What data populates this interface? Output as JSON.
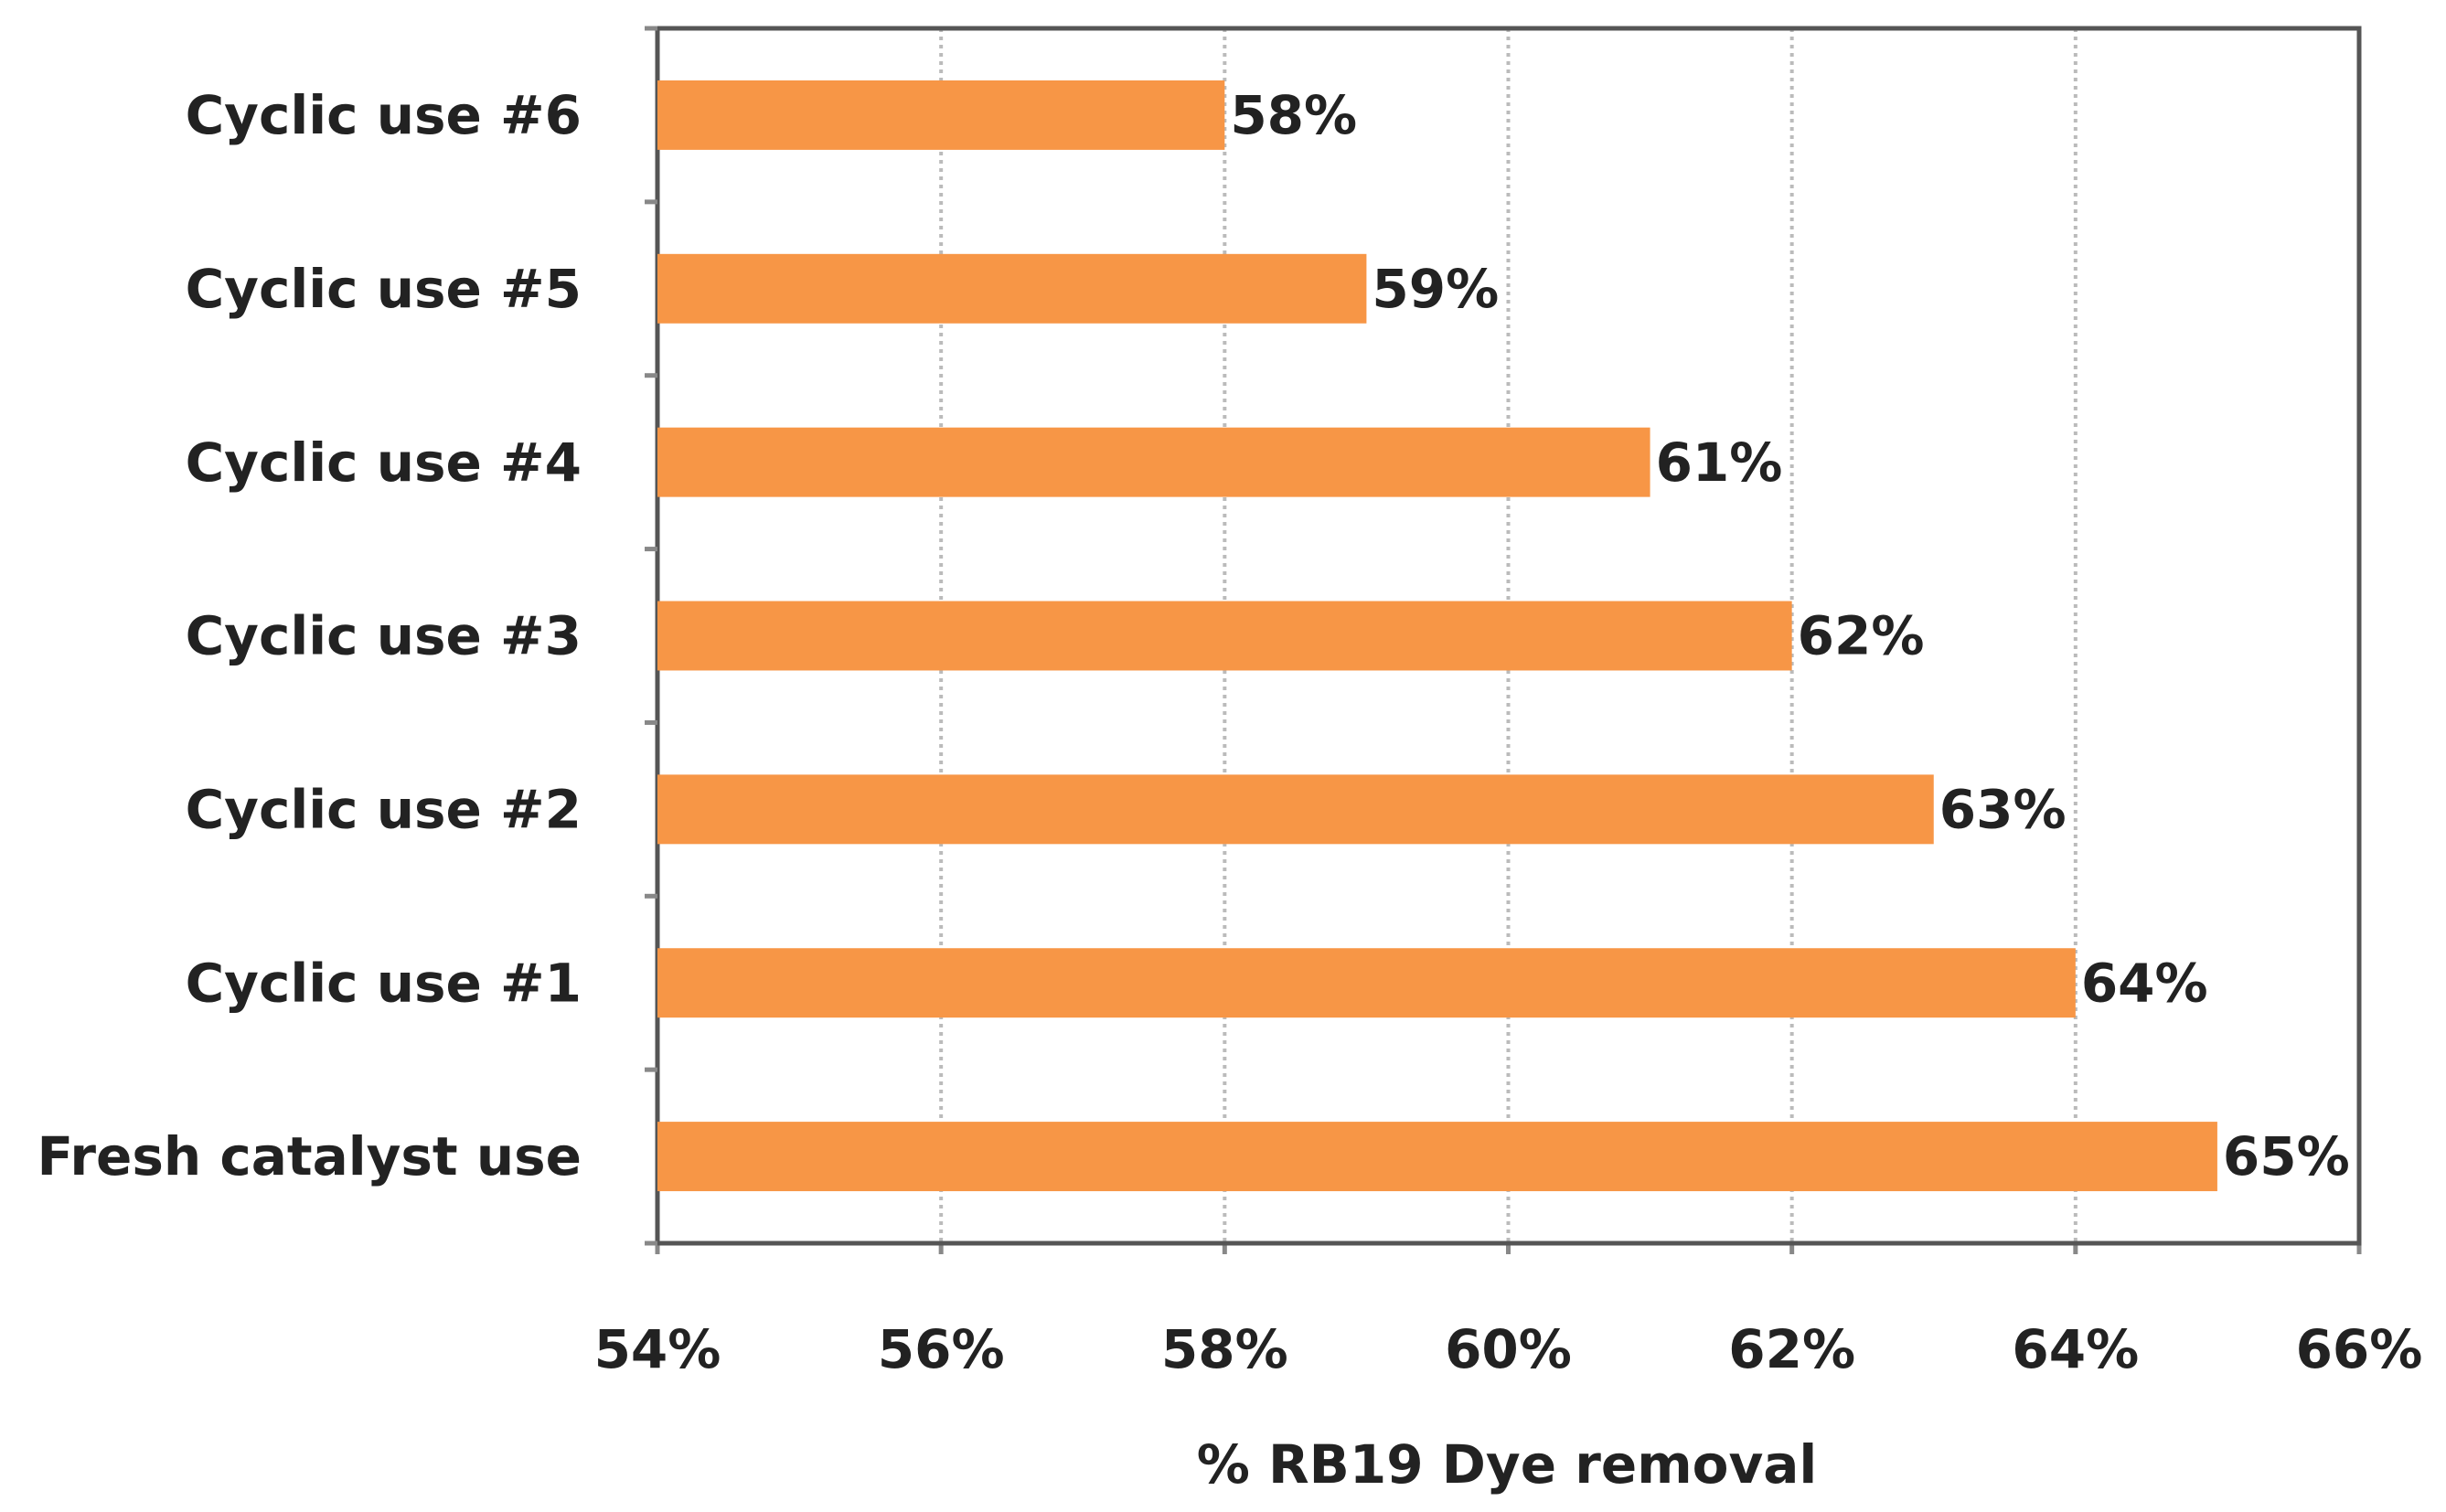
{
  "chart_data": {
    "type": "bar",
    "orientation": "horizontal",
    "x_label": "% RB19 Dye removal",
    "categories": [
      "Cyclic use #6",
      "Cyclic use #5",
      "Cyclic use #4",
      "Cyclic use #3",
      "Cyclic use #2",
      "Cyclic use #1",
      "Fresh catalyst use"
    ],
    "values": [
      58,
      59,
      61,
      62,
      63,
      64,
      65
    ],
    "value_labels": [
      "58%",
      "59%",
      "61%",
      "62%",
      "63%",
      "64%",
      "65%"
    ],
    "color": "#f79646",
    "xlim": [
      54,
      66
    ],
    "xticks": [
      {
        "value": 54,
        "label": "54%"
      },
      {
        "value": 56,
        "label": "56%"
      },
      {
        "value": 58,
        "label": "58%"
      },
      {
        "value": 60,
        "label": "60%"
      },
      {
        "value": 62,
        "label": "62%"
      },
      {
        "value": 64,
        "label": "64%"
      },
      {
        "value": 66,
        "label": "66%"
      }
    ],
    "grid": true
  }
}
